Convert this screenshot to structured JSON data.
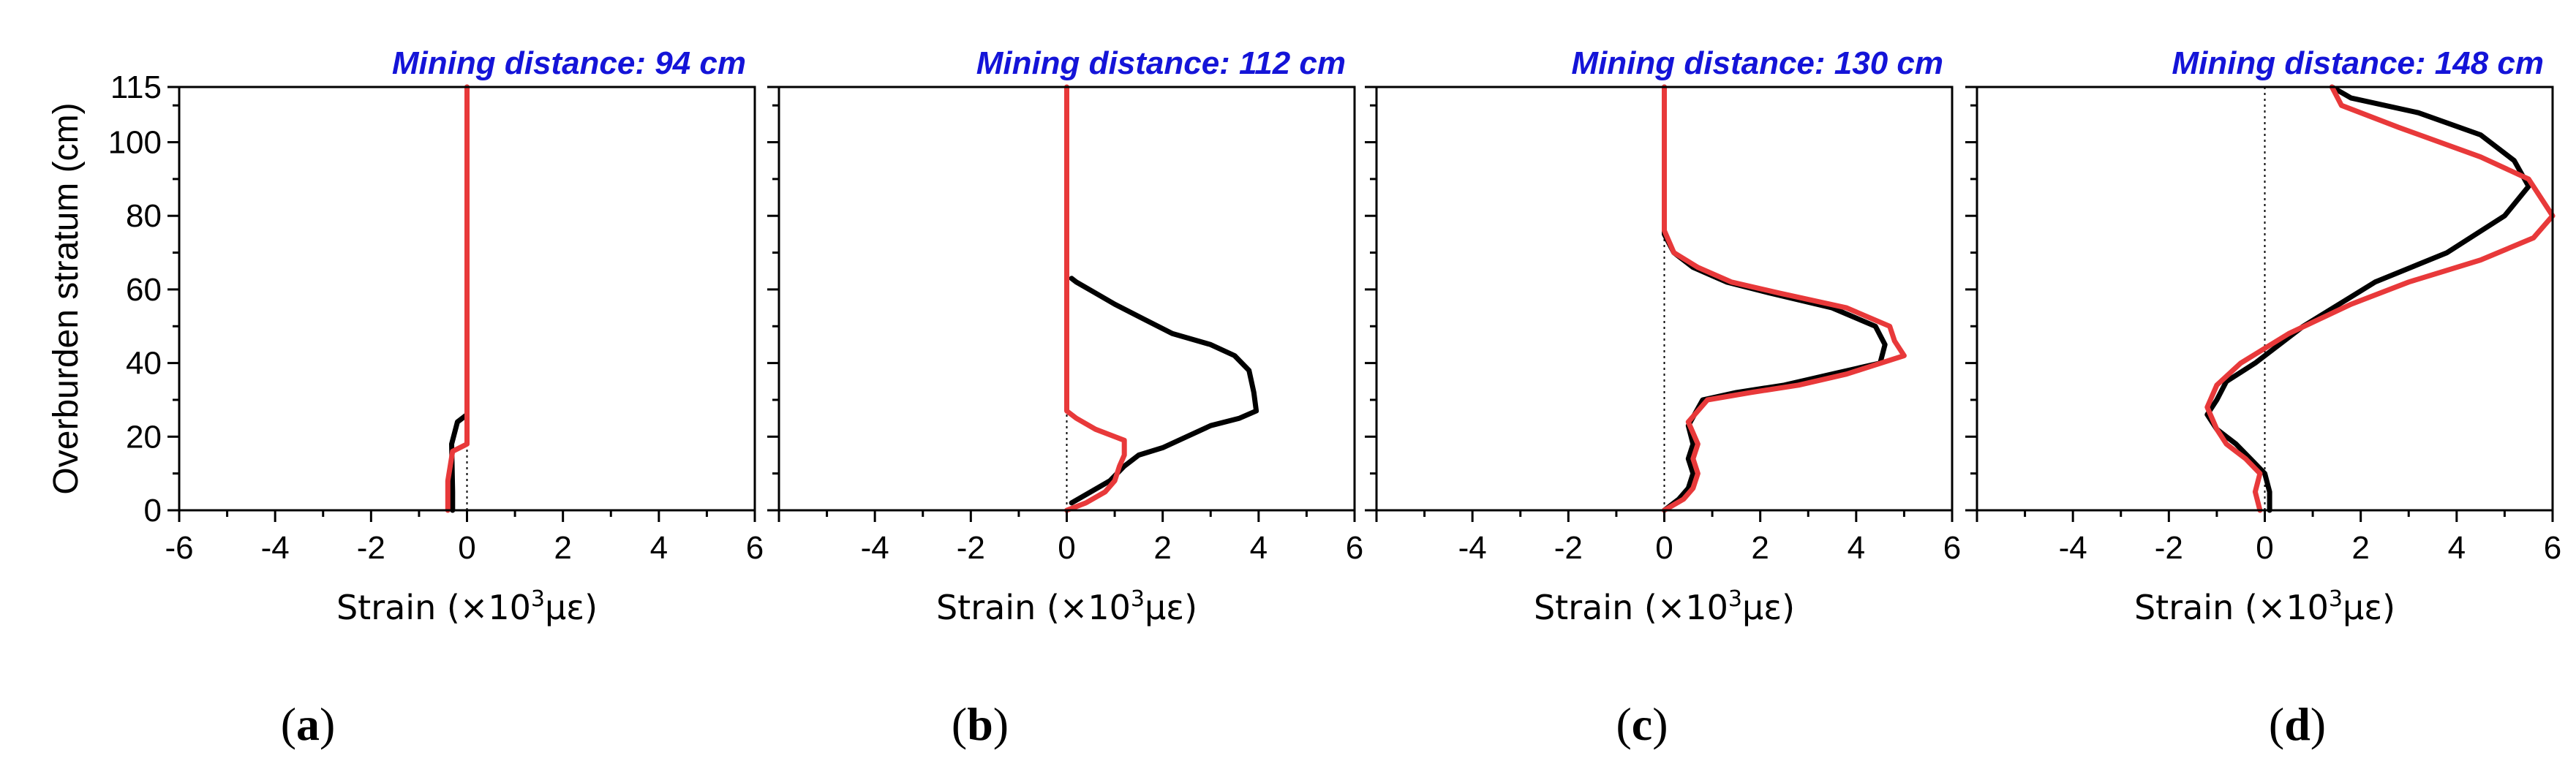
{
  "colors": {
    "title": "#1414d8",
    "series_black": "#000000",
    "series_red": "#e8393a",
    "axis": "#000000",
    "zero_line": "#000000"
  },
  "chart_data": [
    {
      "type": "line",
      "panel": "a",
      "title": "Mining distance: 94 cm",
      "xlabel_prefix": "Strain (×10",
      "xlabel_sup": "3",
      "xlabel_suffix": "με)",
      "ylabel": "Overburden stratum (cm)",
      "xlim": [
        -6,
        6
      ],
      "ylim": [
        0,
        115
      ],
      "xticks": [
        -6,
        -4,
        -2,
        0,
        2,
        4,
        6
      ],
      "yticks": [
        0,
        20,
        40,
        60,
        80,
        100,
        115
      ],
      "series": [
        {
          "name": "black",
          "x": [
            -0.3,
            -0.3,
            -0.32,
            -0.2,
            0.0,
            0.0,
            0.0
          ],
          "y": [
            0,
            5,
            18,
            24,
            26,
            60,
            115
          ]
        },
        {
          "name": "red",
          "x": [
            -0.4,
            -0.4,
            -0.3,
            0.0,
            0.0,
            0.0
          ],
          "y": [
            0,
            8,
            16,
            18,
            26,
            115
          ]
        }
      ],
      "caption": "a"
    },
    {
      "type": "line",
      "panel": "b",
      "title": "Mining distance: 112 cm",
      "xlabel_prefix": "Strain (×10",
      "xlabel_sup": "3",
      "xlabel_suffix": "με)",
      "ylabel": "",
      "xlim": [
        -6,
        6
      ],
      "ylim": [
        0,
        115
      ],
      "xticks": [
        -6,
        -4,
        -2,
        0,
        2,
        4,
        6
      ],
      "yticks": [
        0,
        20,
        40,
        60,
        80,
        100,
        115
      ],
      "series": [
        {
          "name": "black",
          "x": [
            0.1,
            0.5,
            0.9,
            1.2,
            1.5,
            2.0,
            2.5,
            3.0,
            3.6,
            3.95,
            3.9,
            3.8,
            3.5,
            3.0,
            2.2,
            1.6,
            1.0,
            0.6,
            0.2,
            0.1
          ],
          "y": [
            2,
            5,
            8,
            12,
            15,
            17,
            20,
            23,
            25,
            27,
            32,
            38,
            42,
            45,
            48,
            52,
            56,
            59,
            62,
            63
          ]
        },
        {
          "name": "red",
          "x": [
            0.0,
            0.4,
            0.8,
            1.0,
            1.1,
            1.2,
            1.2,
            0.6,
            0.2,
            0.0,
            0.0,
            0.0
          ],
          "y": [
            0,
            2,
            5,
            8,
            12,
            15,
            19,
            22,
            25,
            27,
            60,
            115
          ]
        }
      ],
      "caption": "b"
    },
    {
      "type": "line",
      "panel": "c",
      "title": "Mining distance: 130 cm",
      "xlabel_prefix": "Strain (×10",
      "xlabel_sup": "3",
      "xlabel_suffix": "με)",
      "ylabel": "",
      "xlim": [
        -6,
        6
      ],
      "ylim": [
        0,
        115
      ],
      "xticks": [
        -6,
        -4,
        -2,
        0,
        2,
        4,
        6
      ],
      "yticks": [
        0,
        20,
        40,
        60,
        80,
        100,
        115
      ],
      "series": [
        {
          "name": "black",
          "x": [
            0.0,
            0.3,
            0.5,
            0.6,
            0.5,
            0.6,
            0.5,
            0.8,
            1.5,
            2.5,
            3.5,
            4.5,
            4.6,
            4.4,
            3.5,
            2.2,
            1.3,
            0.6,
            0.2,
            0.0,
            0.0
          ],
          "y": [
            0,
            3,
            6,
            10,
            14,
            18,
            23,
            30,
            32,
            34,
            37,
            40,
            45,
            50,
            55,
            59,
            62,
            66,
            70,
            75,
            115
          ]
        },
        {
          "name": "red",
          "x": [
            0.0,
            0.4,
            0.6,
            0.7,
            0.6,
            0.7,
            0.5,
            0.9,
            1.8,
            2.8,
            3.8,
            5.0,
            4.8,
            4.7,
            3.8,
            2.4,
            1.4,
            0.7,
            0.2,
            0.0,
            0.0
          ],
          "y": [
            0,
            3,
            6,
            10,
            14,
            18,
            24,
            30,
            32,
            34,
            37,
            42,
            46,
            50,
            55,
            59,
            62,
            66,
            70,
            76,
            115
          ]
        }
      ],
      "caption": "c"
    },
    {
      "type": "line",
      "panel": "d",
      "title": "Mining distance: 148 cm",
      "xlabel_prefix": "Strain (×10",
      "xlabel_sup": "3",
      "xlabel_suffix": "με)",
      "ylabel": "",
      "xlim": [
        -6,
        6
      ],
      "ylim": [
        0,
        115
      ],
      "xticks": [
        -6,
        -4,
        -2,
        0,
        2,
        4,
        6
      ],
      "yticks": [
        0,
        20,
        40,
        60,
        80,
        100,
        115
      ],
      "series": [
        {
          "name": "black",
          "x": [
            0.1,
            0.1,
            0.0,
            -0.3,
            -0.6,
            -1.0,
            -1.2,
            -1.0,
            -0.8,
            -0.2,
            0.8,
            1.8,
            2.3,
            3.8,
            5.0,
            5.5,
            5.2,
            4.5,
            3.2,
            1.8,
            1.4
          ],
          "y": [
            0,
            5,
            10,
            14,
            18,
            22,
            26,
            30,
            35,
            40,
            50,
            58,
            62,
            70,
            80,
            88,
            95,
            102,
            108,
            112,
            115
          ]
        },
        {
          "name": "red",
          "x": [
            -0.1,
            -0.2,
            -0.1,
            -0.4,
            -0.8,
            -1.0,
            -1.2,
            -1.0,
            -0.5,
            0.5,
            1.8,
            3.0,
            4.5,
            5.6,
            6.0,
            5.5,
            4.5,
            2.8,
            1.6,
            1.4
          ],
          "y": [
            0,
            5,
            10,
            14,
            18,
            22,
            28,
            34,
            40,
            48,
            56,
            62,
            68,
            74,
            80,
            90,
            96,
            104,
            110,
            115
          ]
        }
      ],
      "caption": "d"
    }
  ]
}
